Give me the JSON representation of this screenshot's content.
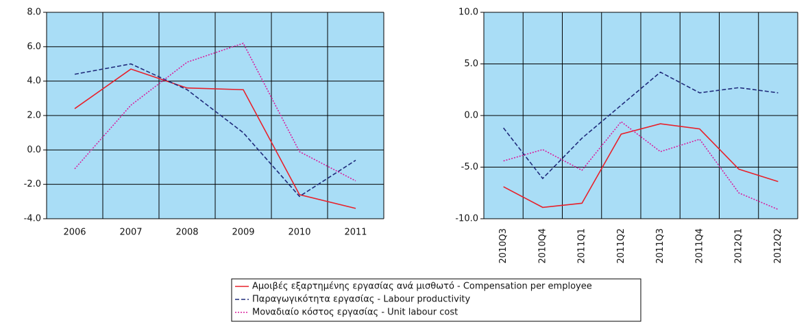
{
  "chart_data": [
    {
      "type": "line",
      "categories": [
        "2006",
        "2007",
        "2008",
        "2009",
        "2010",
        "2011"
      ],
      "ylim": [
        -4,
        8
      ],
      "yticks": [
        {
          "value": -4,
          "label": "-4.0"
        },
        {
          "value": -2,
          "label": "-2.0"
        },
        {
          "value": 0,
          "label": "0.0"
        },
        {
          "value": 2,
          "label": "2.0"
        },
        {
          "value": 4,
          "label": "4.0"
        },
        {
          "value": 6,
          "label": "6.0"
        },
        {
          "value": 8,
          "label": "8.0"
        }
      ],
      "grid": true,
      "series": [
        {
          "name": "Αμοιβές εξαρτημένης εργασίας ανά μισθωτό - Compensation per employee",
          "color": "#e8202a",
          "style": "solid",
          "values": [
            2.4,
            4.7,
            3.6,
            3.5,
            -2.6,
            -3.4
          ]
        },
        {
          "name": "Παραγωγικότητα εργασίας - Labour productivity",
          "color": "#1f2a7a",
          "style": "dashed",
          "values": [
            4.4,
            5.0,
            3.5,
            1.0,
            -2.7,
            -0.6
          ]
        },
        {
          "name": "Μοναδιαίο κόστος εργασίας - Unit labour cost",
          "color": "#d81b9c",
          "style": "dotted",
          "values": [
            -1.1,
            2.6,
            5.1,
            6.2,
            -0.1,
            -1.8
          ]
        }
      ]
    },
    {
      "type": "line",
      "categories": [
        "2010Q3",
        "2010Q4",
        "2011Q1",
        "2011Q2",
        "2011Q3",
        "2011Q4",
        "2012Q1",
        "2012Q2"
      ],
      "ylim": [
        -10,
        10
      ],
      "yticks": [
        {
          "value": -10,
          "label": "-10.0"
        },
        {
          "value": -5,
          "label": "-5.0"
        },
        {
          "value": 0,
          "label": "0.0"
        },
        {
          "value": 5,
          "label": "5.0"
        },
        {
          "value": 10,
          "label": "10.0"
        }
      ],
      "grid": true,
      "series": [
        {
          "color": "#e8202a",
          "style": "solid",
          "values": [
            -6.9,
            -8.9,
            -8.5,
            -1.8,
            -0.8,
            -1.3,
            -5.2,
            -6.4
          ]
        },
        {
          "color": "#1f2a7a",
          "style": "dashed",
          "values": [
            -1.2,
            -6.1,
            -2.2,
            1.0,
            4.2,
            2.2,
            2.7,
            2.2
          ]
        },
        {
          "color": "#d81b9c",
          "style": "dotted",
          "values": [
            -4.4,
            -3.3,
            -5.3,
            -0.6,
            -3.5,
            -2.3,
            -7.5,
            -9.1
          ]
        }
      ]
    }
  ]
}
